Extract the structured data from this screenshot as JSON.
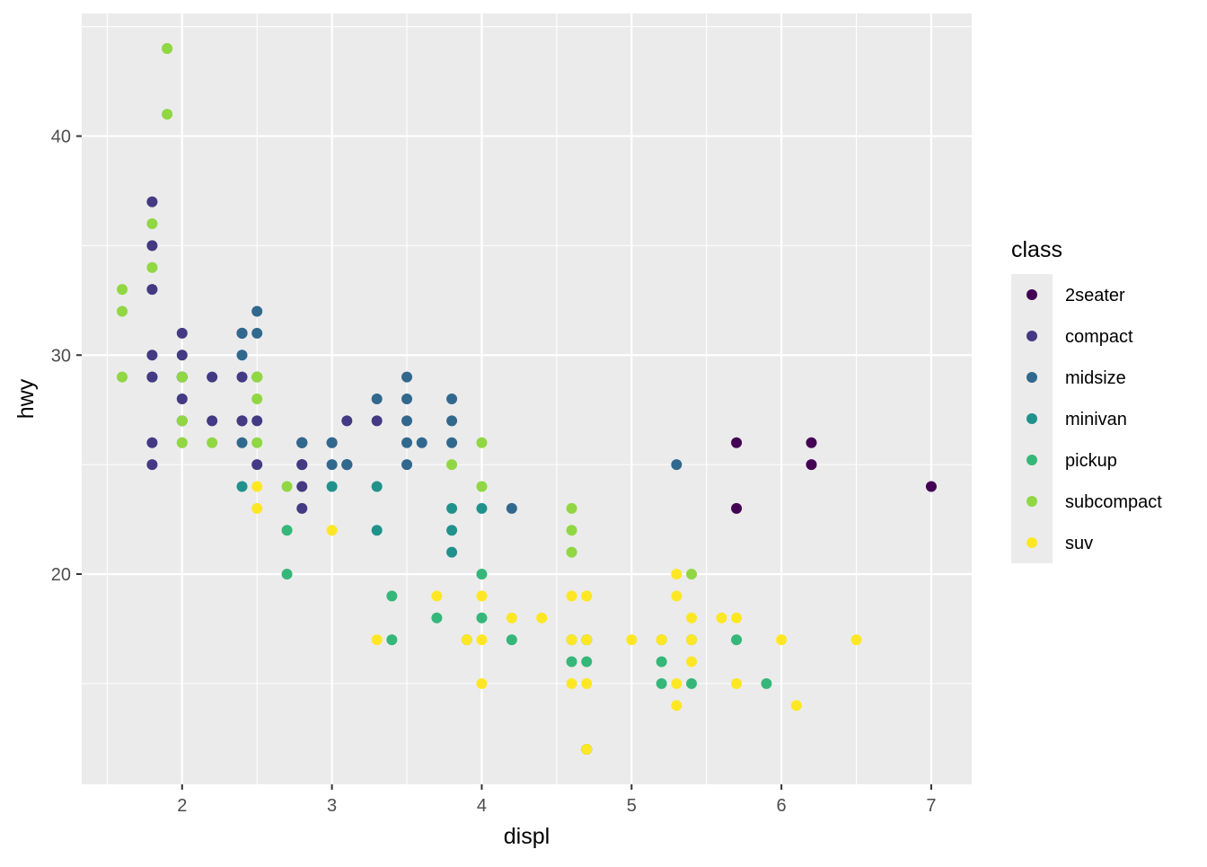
{
  "chart_data": {
    "type": "scatter",
    "xlabel": "displ",
    "ylabel": "hwy",
    "xlim": [
      1.33,
      7.27
    ],
    "ylim": [
      10.4,
      45.6
    ],
    "x_ticks": [
      2,
      3,
      4,
      5,
      6,
      7
    ],
    "y_ticks": [
      20,
      30,
      40
    ],
    "x_tick_labels": [
      "2",
      "3",
      "4",
      "5",
      "6",
      "7"
    ],
    "y_tick_labels": [
      "20",
      "30",
      "40"
    ],
    "grid": true,
    "background": "#ebebeb",
    "legend": {
      "title": "class",
      "placement": "right",
      "entries": [
        {
          "label": "2seater",
          "color": "#440154"
        },
        {
          "label": "compact",
          "color": "#443983"
        },
        {
          "label": "midsize",
          "color": "#31688e"
        },
        {
          "label": "minivan",
          "color": "#21918c"
        },
        {
          "label": "pickup",
          "color": "#35b779"
        },
        {
          "label": "subcompact",
          "color": "#90d743"
        },
        {
          "label": "suv",
          "color": "#fde725"
        }
      ]
    },
    "series": [
      {
        "name": "2seater",
        "color": "#440154",
        "points": [
          [
            5.7,
            26
          ],
          [
            5.7,
            23
          ],
          [
            6.2,
            26
          ],
          [
            6.2,
            25
          ],
          [
            7.0,
            24
          ]
        ]
      },
      {
        "name": "compact",
        "color": "#443983",
        "points": [
          [
            1.8,
            29
          ],
          [
            1.8,
            29
          ],
          [
            2.0,
            31
          ],
          [
            2.0,
            30
          ],
          [
            2.8,
            26
          ],
          [
            2.8,
            26
          ],
          [
            3.1,
            27
          ],
          [
            1.8,
            26
          ],
          [
            1.8,
            25
          ],
          [
            2.0,
            28
          ],
          [
            2.0,
            27
          ],
          [
            2.8,
            25
          ],
          [
            2.8,
            25
          ],
          [
            3.1,
            25
          ],
          [
            3.1,
            25
          ],
          [
            1.8,
            37
          ],
          [
            1.8,
            35
          ],
          [
            1.8,
            30
          ],
          [
            1.8,
            33
          ],
          [
            2.2,
            29
          ],
          [
            2.4,
            31
          ],
          [
            2.4,
            27
          ],
          [
            2.4,
            31
          ],
          [
            2.4,
            27
          ],
          [
            2.5,
            25
          ],
          [
            2.5,
            27
          ],
          [
            2.8,
            24
          ],
          [
            2.8,
            23
          ],
          [
            3.0,
            26
          ],
          [
            3.3,
            27
          ],
          [
            2.0,
            29
          ],
          [
            2.2,
            27
          ],
          [
            2.4,
            29
          ],
          [
            2.5,
            29
          ],
          [
            2.8,
            26
          ]
        ]
      },
      {
        "name": "midsize",
        "color": "#31688e",
        "points": [
          [
            2.8,
            26
          ],
          [
            3.1,
            25
          ],
          [
            4.2,
            23
          ],
          [
            5.3,
            25
          ],
          [
            2.4,
            30
          ],
          [
            2.4,
            26
          ],
          [
            3.5,
            29
          ],
          [
            3.5,
            28
          ],
          [
            3.6,
            26
          ],
          [
            3.5,
            25
          ],
          [
            3.8,
            28
          ],
          [
            3.8,
            26
          ],
          [
            3.8,
            27
          ],
          [
            3.3,
            28
          ],
          [
            3.5,
            26
          ],
          [
            2.4,
            31
          ],
          [
            3.0,
            26
          ],
          [
            2.5,
            32
          ],
          [
            2.5,
            31
          ],
          [
            2.0,
            29
          ],
          [
            3.0,
            25
          ],
          [
            3.5,
            27
          ]
        ]
      },
      {
        "name": "minivan",
        "color": "#21918c",
        "points": [
          [
            2.4,
            24
          ],
          [
            3.0,
            24
          ],
          [
            3.3,
            22
          ],
          [
            3.3,
            24
          ],
          [
            3.8,
            22
          ],
          [
            3.8,
            21
          ],
          [
            4.0,
            23
          ],
          [
            3.8,
            23
          ]
        ]
      },
      {
        "name": "pickup",
        "color": "#35b779",
        "points": [
          [
            2.7,
            20
          ],
          [
            2.7,
            22
          ],
          [
            3.4,
            17
          ],
          [
            3.4,
            19
          ],
          [
            4.0,
            20
          ],
          [
            4.0,
            18
          ],
          [
            4.7,
            16
          ],
          [
            4.7,
            12
          ],
          [
            4.7,
            17
          ],
          [
            5.2,
            16
          ],
          [
            5.2,
            15
          ],
          [
            5.7,
            17
          ],
          [
            5.9,
            15
          ],
          [
            4.7,
            17
          ],
          [
            4.6,
            16
          ],
          [
            5.4,
            15
          ],
          [
            5.4,
            17
          ],
          [
            3.7,
            18
          ],
          [
            3.9,
            17
          ],
          [
            4.7,
            12
          ],
          [
            5.2,
            17
          ],
          [
            4.2,
            17
          ],
          [
            4.6,
            17
          ]
        ]
      },
      {
        "name": "subcompact",
        "color": "#90d743",
        "points": [
          [
            3.8,
            25
          ],
          [
            4.0,
            24
          ],
          [
            4.0,
            26
          ],
          [
            4.6,
            23
          ],
          [
            4.6,
            21
          ],
          [
            5.4,
            20
          ],
          [
            4.6,
            22
          ],
          [
            1.6,
            33
          ],
          [
            1.6,
            32
          ],
          [
            1.6,
            29
          ],
          [
            1.8,
            36
          ],
          [
            1.8,
            34
          ],
          [
            2.0,
            26
          ],
          [
            2.0,
            27
          ],
          [
            2.0,
            26
          ],
          [
            2.5,
            26
          ],
          [
            2.5,
            29
          ],
          [
            2.5,
            28
          ],
          [
            2.2,
            26
          ],
          [
            2.5,
            29
          ],
          [
            2.7,
            24
          ],
          [
            1.9,
            44
          ],
          [
            1.9,
            41
          ],
          [
            1.9,
            44
          ],
          [
            2.0,
            29
          ]
        ]
      },
      {
        "name": "suv",
        "color": "#fde725",
        "points": [
          [
            5.3,
            20
          ],
          [
            5.3,
            15
          ],
          [
            5.7,
            15
          ],
          [
            6.5,
            17
          ],
          [
            3.7,
            19
          ],
          [
            3.9,
            17
          ],
          [
            4.7,
            17
          ],
          [
            4.7,
            12
          ],
          [
            5.2,
            17
          ],
          [
            5.7,
            18
          ],
          [
            6.1,
            14
          ],
          [
            4.0,
            17
          ],
          [
            4.0,
            19
          ],
          [
            4.6,
            17
          ],
          [
            5.0,
            17
          ],
          [
            4.2,
            18
          ],
          [
            4.6,
            19
          ],
          [
            4.7,
            19
          ],
          [
            5.4,
            17
          ],
          [
            5.4,
            18
          ],
          [
            5.6,
            18
          ],
          [
            3.0,
            22
          ],
          [
            3.3,
            17
          ],
          [
            4.0,
            15
          ],
          [
            4.7,
            15
          ],
          [
            5.3,
            19
          ],
          [
            5.3,
            14
          ],
          [
            5.4,
            16
          ],
          [
            4.4,
            18
          ],
          [
            6.0,
            17
          ],
          [
            4.6,
            15
          ],
          [
            2.5,
            24
          ],
          [
            2.5,
            23
          ],
          [
            4.7,
            19
          ]
        ]
      }
    ]
  }
}
